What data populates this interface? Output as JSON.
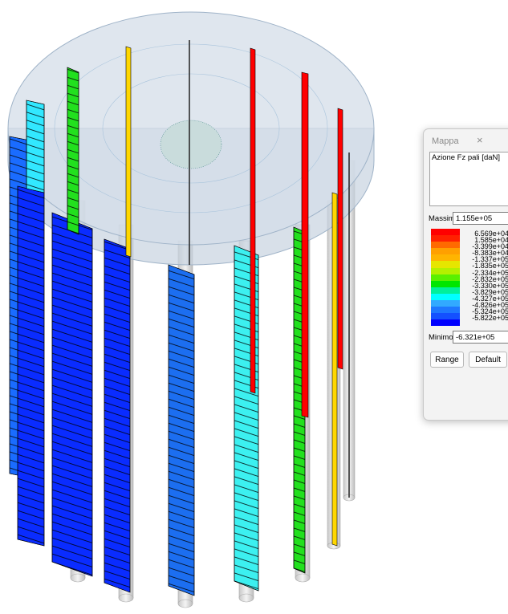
{
  "window": {
    "title": "Mappa",
    "quantity": "Azione Fz pali [daN]",
    "max": {
      "label": "Massimo",
      "value": "1.155e+05"
    },
    "scale_colors": [
      "#ff0000",
      "#ff2000",
      "#ff6a00",
      "#ffa000",
      "#ffb400",
      "#e6e600",
      "#b4f000",
      "#5af000",
      "#00e600",
      "#00f09a",
      "#00ffff",
      "#32aaff",
      "#1e78ff",
      "#1450ff",
      "#0000ff"
    ],
    "scale_labels": [
      "6.569e+04",
      "1.585e+04",
      "-3.399e+04",
      "-8.383e+04",
      "-1.337e+05",
      "-1.835e+05",
      "-2.334e+05",
      "-2.832e+05",
      "-3.330e+05",
      "-3.829e+05",
      "-4.327e+05",
      "-4.826e+05",
      "-5.324e+05",
      "-5.822e+05"
    ],
    "min": {
      "label": "Minimo",
      "value": "-6.321e+05"
    },
    "buttons": [
      "Range",
      "Default"
    ]
  }
}
